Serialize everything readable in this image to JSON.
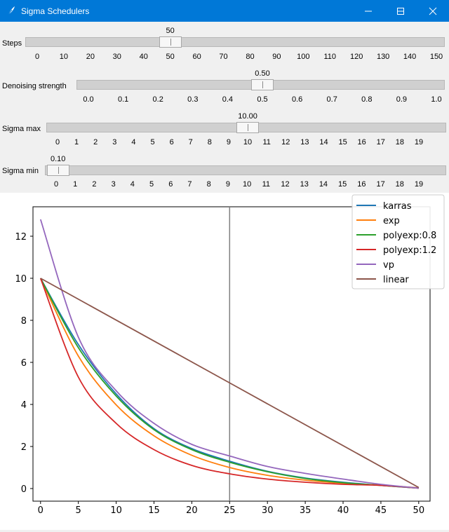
{
  "window": {
    "title": "Sigma Schedulers"
  },
  "sliders": {
    "steps": {
      "label": "Steps",
      "value": "50",
      "min": 0,
      "max": 150,
      "ticks": [
        "0",
        "10",
        "20",
        "30",
        "40",
        "50",
        "60",
        "70",
        "80",
        "90",
        "100",
        "110",
        "120",
        "130",
        "140",
        "150"
      ]
    },
    "denoise": {
      "label": "Denoising strength",
      "value": "0.50",
      "min": 0,
      "max": 1,
      "ticks": [
        "0.0",
        "0.1",
        "0.2",
        "0.3",
        "0.4",
        "0.5",
        "0.6",
        "0.7",
        "0.8",
        "0.9",
        "1.0"
      ]
    },
    "sigma_max": {
      "label": "Sigma max",
      "value": "10.00",
      "min": 0,
      "max": 20,
      "ticks": [
        "0",
        "1",
        "2",
        "3",
        "4",
        "5",
        "6",
        "7",
        "8",
        "9",
        "10",
        "11",
        "12",
        "13",
        "14",
        "15",
        "16",
        "17",
        "18",
        "19"
      ]
    },
    "sigma_min": {
      "label": "Sigma min",
      "value": "0.10",
      "min": 0,
      "max": 20,
      "ticks": [
        "0",
        "1",
        "2",
        "3",
        "4",
        "5",
        "6",
        "7",
        "8",
        "9",
        "10",
        "11",
        "12",
        "13",
        "14",
        "15",
        "16",
        "17",
        "18",
        "19"
      ]
    }
  },
  "chart_data": {
    "type": "line",
    "xlim": [
      -1,
      51.5
    ],
    "ylim": [
      -0.6,
      13.4
    ],
    "xticks": [
      0,
      5,
      10,
      15,
      20,
      25,
      30,
      35,
      40,
      45,
      50
    ],
    "yticks": [
      0,
      2,
      4,
      6,
      8,
      10,
      12
    ],
    "vline": {
      "x": 25,
      "color": "#808080"
    },
    "legend_position": "top-right",
    "series": [
      {
        "name": "karras",
        "color": "#1f77b4",
        "x": [
          0,
          5,
          10,
          15,
          20,
          25,
          30,
          35,
          40,
          45,
          50
        ],
        "y": [
          10.0,
          6.85,
          4.5,
          2.85,
          1.9,
          1.3,
          0.82,
          0.5,
          0.3,
          0.15,
          0.02
        ]
      },
      {
        "name": "exp",
        "color": "#ff7f0e",
        "x": [
          0,
          5,
          10,
          15,
          20,
          25,
          30,
          35,
          40,
          45,
          50
        ],
        "y": [
          10.0,
          6.3,
          3.98,
          2.51,
          1.58,
          1.0,
          0.63,
          0.4,
          0.25,
          0.16,
          0.03
        ]
      },
      {
        "name": "polyexp:0.8",
        "color": "#2ca02c",
        "x": [
          0,
          5,
          10,
          15,
          20,
          25,
          30,
          35,
          40,
          45,
          50
        ],
        "y": [
          10.0,
          6.7,
          4.4,
          2.8,
          1.85,
          1.25,
          0.8,
          0.48,
          0.28,
          0.15,
          0.02
        ]
      },
      {
        "name": "polyexp:1.2",
        "color": "#d62728",
        "x": [
          0,
          5,
          10,
          15,
          20,
          25,
          30,
          35,
          40,
          45,
          50
        ],
        "y": [
          10.0,
          5.3,
          3.1,
          1.85,
          1.1,
          0.7,
          0.45,
          0.3,
          0.2,
          0.15,
          0.02
        ]
      },
      {
        "name": "vp",
        "color": "#9467bd",
        "x": [
          0,
          5,
          10,
          15,
          20,
          25,
          30,
          35,
          40,
          45,
          50
        ],
        "y": [
          12.8,
          7.2,
          4.65,
          3.1,
          2.1,
          1.55,
          1.05,
          0.72,
          0.45,
          0.2,
          0.02
        ]
      },
      {
        "name": "linear",
        "color": "#8c564b",
        "x": [
          0,
          50
        ],
        "y": [
          10.0,
          0.05
        ]
      }
    ]
  }
}
